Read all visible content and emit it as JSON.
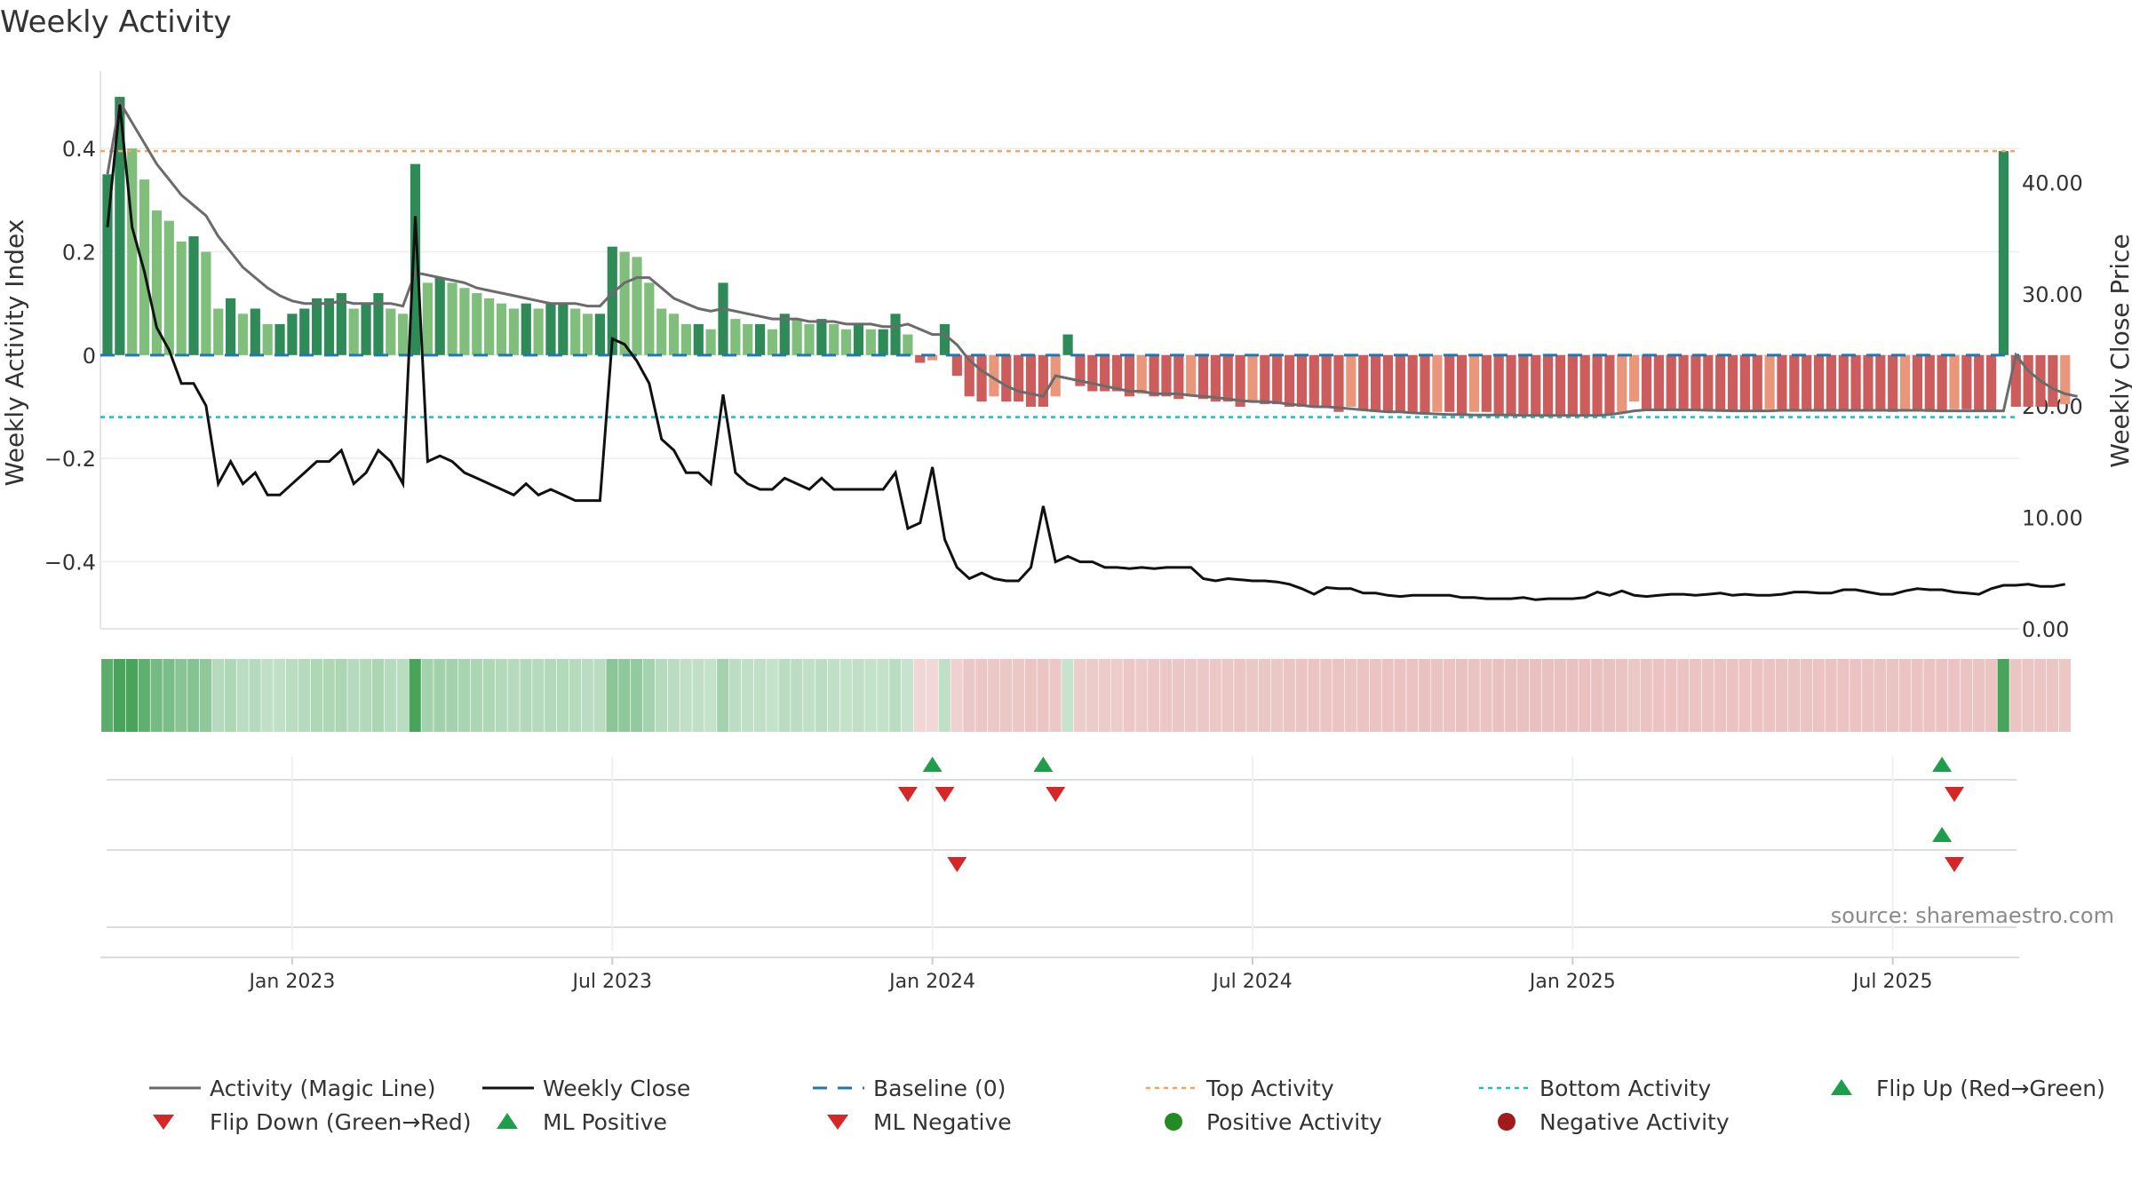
{
  "chart_data": {
    "type": "bar",
    "title": "Weekly Activity",
    "source": "source: sharemaestro.com",
    "ylabel_left": "Weekly Activity Index",
    "ylabel_right": "Weekly Close Price",
    "y_left_lim": [
      -0.53,
      0.55
    ],
    "y_left_ticks": [
      {
        "v": 0.4,
        "label": "0.4"
      },
      {
        "v": 0.2,
        "label": "0.2"
      },
      {
        "v": 0,
        "label": "0"
      },
      {
        "v": -0.2,
        "label": "−0.2"
      },
      {
        "v": -0.4,
        "label": "−0.4"
      }
    ],
    "y_right_lim": [
      0,
      50
    ],
    "y_right_ticks": [
      {
        "v": 40,
        "label": "40.00"
      },
      {
        "v": 30,
        "label": "30.00"
      },
      {
        "v": 20,
        "label": "20.00"
      },
      {
        "v": 10,
        "label": "10.00"
      },
      {
        "v": 0,
        "label": "0.00"
      }
    ],
    "x_ticks": [
      {
        "i": 15,
        "label": "Jan 2023"
      },
      {
        "i": 41,
        "label": "Jul 2023"
      },
      {
        "i": 67,
        "label": "Jan 2024"
      },
      {
        "i": 93,
        "label": "Jul 2024"
      },
      {
        "i": 119,
        "label": "Jan 2025"
      },
      {
        "i": 145,
        "label": "Jul 2025"
      }
    ],
    "top_activity": 0.395,
    "bottom_activity": -0.12,
    "legend": {
      "row1": [
        "Activity (Magic Line)",
        "Weekly Close",
        "Baseline (0)",
        "Top Activity",
        "Bottom Activity",
        "Flip Up (Red→Green)"
      ],
      "row2": [
        "Flip Down (Green→Red)",
        "ML Positive",
        "ML Negative",
        "Positive Activity",
        "Negative Activity"
      ]
    },
    "colors": {
      "positive_strong": "#2e8b57",
      "positive_light": "#7fbf7b",
      "negative_strong": "#cd5c5c",
      "negative_light": "#e9967a",
      "magic_line": "#6b6b6b",
      "close_line": "#111111",
      "baseline": "#1f77b4",
      "top": "#f4a460",
      "bottom": "#17becf",
      "flip_up": "#1e9e4a",
      "flip_down": "#d62728"
    },
    "activity": [
      0.35,
      0.5,
      0.4,
      0.34,
      0.28,
      0.26,
      0.22,
      0.23,
      0.2,
      0.09,
      0.11,
      0.08,
      0.09,
      0.06,
      0.06,
      0.08,
      0.09,
      0.11,
      0.11,
      0.12,
      0.09,
      0.1,
      0.12,
      0.09,
      0.08,
      0.37,
      0.14,
      0.15,
      0.14,
      0.13,
      0.12,
      0.11,
      0.1,
      0.09,
      0.1,
      0.09,
      0.1,
      0.1,
      0.09,
      0.08,
      0.08,
      0.21,
      0.2,
      0.19,
      0.14,
      0.09,
      0.08,
      0.06,
      0.06,
      0.05,
      0.14,
      0.07,
      0.06,
      0.06,
      0.05,
      0.08,
      0.07,
      0.06,
      0.07,
      0.06,
      0.05,
      0.06,
      0.05,
      0.05,
      0.08,
      0.04,
      -0.015,
      -0.01,
      0.06,
      -0.04,
      -0.08,
      -0.09,
      -0.08,
      -0.09,
      -0.09,
      -0.1,
      -0.1,
      -0.08,
      0.04,
      -0.06,
      -0.07,
      -0.07,
      -0.07,
      -0.08,
      -0.075,
      -0.08,
      -0.08,
      -0.085,
      -0.08,
      -0.085,
      -0.09,
      -0.09,
      -0.1,
      -0.09,
      -0.095,
      -0.095,
      -0.1,
      -0.1,
      -0.1,
      -0.1,
      -0.11,
      -0.1,
      -0.105,
      -0.11,
      -0.11,
      -0.11,
      -0.11,
      -0.115,
      -0.11,
      -0.11,
      -0.115,
      -0.11,
      -0.11,
      -0.115,
      -0.115,
      -0.115,
      -0.115,
      -0.115,
      -0.115,
      -0.115,
      -0.115,
      -0.115,
      -0.115,
      -0.11,
      -0.09,
      -0.105,
      -0.105,
      -0.105,
      -0.105,
      -0.105,
      -0.105,
      -0.11,
      -0.11,
      -0.11,
      -0.11,
      -0.105,
      -0.105,
      -0.105,
      -0.105,
      -0.105,
      -0.105,
      -0.105,
      -0.105,
      -0.105,
      -0.105,
      -0.11,
      -0.105,
      -0.105,
      -0.11,
      -0.11,
      -0.105,
      -0.105,
      -0.11,
      -0.11,
      0.395,
      -0.1,
      -0.1,
      -0.1,
      -0.1,
      -0.095
    ],
    "magic_line": [
      0.35,
      0.49,
      0.45,
      0.41,
      0.37,
      0.34,
      0.31,
      0.29,
      0.27,
      0.23,
      0.2,
      0.17,
      0.15,
      0.13,
      0.115,
      0.105,
      0.1,
      0.1,
      0.1,
      0.105,
      0.1,
      0.1,
      0.1,
      0.1,
      0.095,
      0.16,
      0.155,
      0.15,
      0.145,
      0.14,
      0.13,
      0.125,
      0.12,
      0.115,
      0.11,
      0.105,
      0.1,
      0.1,
      0.1,
      0.095,
      0.095,
      0.12,
      0.14,
      0.15,
      0.15,
      0.13,
      0.11,
      0.1,
      0.09,
      0.085,
      0.09,
      0.085,
      0.08,
      0.075,
      0.07,
      0.07,
      0.07,
      0.065,
      0.065,
      0.065,
      0.06,
      0.06,
      0.06,
      0.055,
      0.055,
      0.06,
      0.05,
      0.04,
      0.04,
      0.02,
      -0.01,
      -0.03,
      -0.045,
      -0.06,
      -0.07,
      -0.075,
      -0.08,
      -0.04,
      -0.045,
      -0.05,
      -0.055,
      -0.06,
      -0.065,
      -0.07,
      -0.07,
      -0.075,
      -0.075,
      -0.075,
      -0.078,
      -0.08,
      -0.082,
      -0.085,
      -0.088,
      -0.09,
      -0.09,
      -0.092,
      -0.095,
      -0.097,
      -0.1,
      -0.1,
      -0.102,
      -0.104,
      -0.106,
      -0.108,
      -0.11,
      -0.11,
      -0.112,
      -0.113,
      -0.114,
      -0.115,
      -0.115,
      -0.116,
      -0.116,
      -0.116,
      -0.116,
      -0.117,
      -0.117,
      -0.117,
      -0.117,
      -0.117,
      -0.117,
      -0.117,
      -0.115,
      -0.112,
      -0.108,
      -0.106,
      -0.106,
      -0.106,
      -0.106,
      -0.106,
      -0.107,
      -0.107,
      -0.108,
      -0.108,
      -0.108,
      -0.108,
      -0.107,
      -0.107,
      -0.107,
      -0.107,
      -0.107,
      -0.107,
      -0.107,
      -0.107,
      -0.107,
      -0.107,
      -0.107,
      -0.107,
      -0.107,
      -0.108,
      -0.108,
      -0.108,
      -0.108,
      -0.108,
      -0.108,
      0.0,
      -0.03,
      -0.05,
      -0.065,
      -0.075,
      -0.08
    ],
    "close": [
      36,
      47,
      36,
      32,
      27,
      25,
      22,
      22,
      20,
      13,
      15,
      13,
      14,
      12,
      12,
      13,
      14,
      15,
      15,
      16,
      13,
      14,
      16,
      15,
      13,
      37,
      15,
      15.5,
      15,
      14,
      13.5,
      13,
      12.5,
      12,
      13,
      12,
      12.5,
      12,
      11.5,
      11.5,
      11.5,
      26,
      25.5,
      24,
      22,
      17,
      16,
      14,
      14,
      13,
      21,
      14,
      13,
      12.5,
      12.5,
      13.5,
      13,
      12.5,
      13.5,
      12.5,
      12.5,
      12.5,
      12.5,
      12.5,
      14,
      9,
      9.5,
      14.5,
      8,
      5.5,
      4.5,
      5,
      4.5,
      4.3,
      4.3,
      5.5,
      11,
      6,
      6.5,
      6,
      6,
      5.5,
      5.5,
      5.4,
      5.5,
      5.4,
      5.5,
      5.5,
      5.5,
      4.5,
      4.3,
      4.5,
      4.4,
      4.3,
      4.3,
      4.2,
      4,
      3.6,
      3.1,
      3.7,
      3.6,
      3.6,
      3.2,
      3.2,
      3,
      2.9,
      3,
      3,
      3,
      3,
      2.8,
      2.8,
      2.7,
      2.7,
      2.7,
      2.8,
      2.6,
      2.7,
      2.7,
      2.7,
      2.8,
      3.3,
      3,
      3.4,
      3,
      2.9,
      3,
      3.1,
      3.1,
      3,
      3.1,
      3.2,
      3,
      3.1,
      3,
      3,
      3.1,
      3.3,
      3.3,
      3.2,
      3.2,
      3.5,
      3.5,
      3.3,
      3.1,
      3.1,
      3.4,
      3.6,
      3.5,
      3.5,
      3.3,
      3.2,
      3.1,
      3.6,
      3.9,
      3.9,
      4,
      3.8,
      3.8,
      4
    ],
    "flip_up_idx": [
      67,
      76,
      149
    ],
    "flip_down_idx": [
      65,
      68,
      77,
      150
    ],
    "ml_positive_idx": [
      149
    ],
    "ml_negative_idx": [
      69,
      150
    ]
  }
}
